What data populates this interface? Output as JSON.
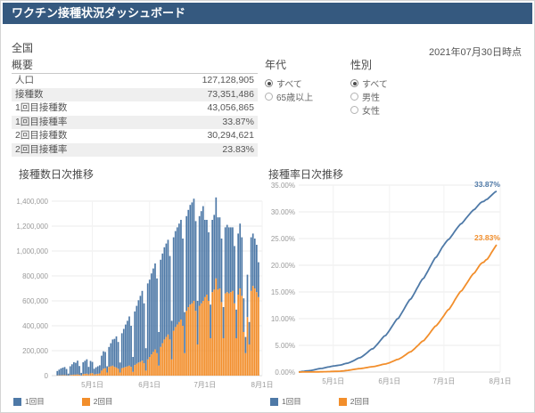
{
  "header": {
    "title": "ワクチン接種状況ダッシュボード"
  },
  "region": "全国",
  "as_of": "2021年07月30日時点",
  "summary": {
    "title": "概要",
    "rows": [
      {
        "label": "人口",
        "value": "127,128,905"
      },
      {
        "label": "接種数",
        "value": "73,351,486"
      },
      {
        "label": "1回目接種数",
        "value": "43,056,865"
      },
      {
        "label": "1回目接種率",
        "value": "33.87%"
      },
      {
        "label": "2回目接種数",
        "value": "30,294,621"
      },
      {
        "label": "2回目接種率",
        "value": "23.83%"
      }
    ]
  },
  "filters": {
    "age": {
      "label": "年代",
      "options": [
        {
          "label": "すべて",
          "selected": true
        },
        {
          "label": "65歳以上",
          "selected": false
        }
      ]
    },
    "gender": {
      "label": "性別",
      "options": [
        {
          "label": "すべて",
          "selected": true
        },
        {
          "label": "男性",
          "selected": false
        },
        {
          "label": "女性",
          "selected": false
        }
      ]
    }
  },
  "colors": {
    "header_bg": "#35597F",
    "dose1": "#4e79a7",
    "dose2": "#f28e2b",
    "grid": "#ebebeb",
    "zero_line": "#d8d8d8"
  },
  "chart_data": [
    {
      "type": "bar",
      "title": "接種数日次推移",
      "stacked": true,
      "start_date": "4月12日",
      "ylim": [
        0,
        1400000
      ],
      "y_ticks": [
        "0",
        "200,000",
        "400,000",
        "600,000",
        "800,000",
        "1,000,000",
        "1,200,000",
        "1,400,000"
      ],
      "x_ticks": [
        {
          "label": "5月1日",
          "day": 19
        },
        {
          "label": "6月1日",
          "day": 50
        },
        {
          "label": "7月1日",
          "day": 80
        },
        {
          "label": "8月1日",
          "day": 111
        }
      ],
      "series": [
        {
          "name": "1回目",
          "values": [
            35000,
            45000,
            55000,
            60000,
            65000,
            50000,
            15000,
            70000,
            85000,
            100000,
            95000,
            110000,
            70000,
            20000,
            95000,
            105000,
            115000,
            60000,
            100000,
            90000,
            45000,
            55000,
            60000,
            65000,
            120000,
            140000,
            130000,
            50000,
            160000,
            185000,
            210000,
            225000,
            250000,
            215000,
            80000,
            280000,
            310000,
            340000,
            365000,
            395000,
            330000,
            120000,
            430000,
            465000,
            500000,
            530000,
            560000,
            480000,
            180000,
            610000,
            620000,
            650000,
            670000,
            690000,
            600000,
            270000,
            700000,
            720000,
            740000,
            750000,
            760000,
            670000,
            310000,
            750000,
            770000,
            780000,
            790000,
            800000,
            700000,
            330000,
            760000,
            780000,
            800000,
            810000,
            820000,
            720000,
            350000,
            720000,
            740000,
            760000,
            620000,
            600000,
            550000,
            270000,
            580000,
            600000,
            650000,
            580000,
            570000,
            510000,
            250000,
            530000,
            540000,
            530000,
            520000,
            510000,
            460000,
            230000,
            490000,
            520000,
            470000,
            270000,
            130000,
            340000,
            180000,
            430000,
            420000,
            400000,
            380000,
            280000
          ]
        },
        {
          "name": "2回目",
          "values": [
            2000,
            3000,
            3000,
            4000,
            4000,
            3000,
            1000,
            5000,
            6000,
            8000,
            8000,
            10000,
            7000,
            2000,
            12000,
            14000,
            16000,
            10000,
            18000,
            20000,
            10000,
            12000,
            15000,
            18000,
            40000,
            55000,
            60000,
            25000,
            70000,
            75000,
            80000,
            70000,
            65000,
            55000,
            25000,
            60000,
            65000,
            70000,
            75000,
            80000,
            70000,
            30000,
            85000,
            95000,
            105000,
            110000,
            120000,
            100000,
            40000,
            130000,
            150000,
            170000,
            190000,
            210000,
            180000,
            80000,
            230000,
            260000,
            290000,
            310000,
            330000,
            290000,
            130000,
            360000,
            390000,
            410000,
            430000,
            450000,
            400000,
            180000,
            520000,
            550000,
            570000,
            580000,
            600000,
            520000,
            250000,
            560000,
            580000,
            600000,
            630000,
            650000,
            600000,
            300000,
            670000,
            690000,
            780000,
            690000,
            700000,
            590000,
            300000,
            660000,
            670000,
            660000,
            670000,
            680000,
            580000,
            300000,
            650000,
            700000,
            640000,
            350000,
            180000,
            470000,
            250000,
            680000,
            720000,
            700000,
            670000,
            630000
          ]
        }
      ]
    },
    {
      "type": "line",
      "title": "接種率日次推移",
      "start_date": "4月12日",
      "ylim": [
        0,
        35
      ],
      "y_ticks": [
        "0.00%",
        "5.00%",
        "10.00%",
        "15.00%",
        "20.00%",
        "25.00%",
        "30.00%",
        "35.00%"
      ],
      "x_ticks": [
        {
          "label": "5月1日",
          "day": 19
        },
        {
          "label": "6月1日",
          "day": 50
        },
        {
          "label": "7月1日",
          "day": 80
        },
        {
          "label": "8月1日",
          "day": 111
        }
      ],
      "series": [
        {
          "name": "1回目",
          "end_label": "33.87%",
          "values": [
            0.03,
            0.06,
            0.11,
            0.15,
            0.2,
            0.24,
            0.26,
            0.31,
            0.38,
            0.46,
            0.53,
            0.62,
            0.67,
            0.69,
            0.76,
            0.85,
            0.94,
            0.98,
            1.06,
            1.13,
            1.17,
            1.21,
            1.26,
            1.31,
            1.4,
            1.51,
            1.62,
            1.66,
            1.78,
            1.93,
            2.09,
            2.27,
            2.47,
            2.64,
            2.7,
            2.92,
            3.16,
            3.43,
            3.72,
            4.03,
            4.29,
            4.38,
            4.72,
            5.09,
            5.48,
            5.9,
            6.34,
            6.71,
            6.86,
            7.34,
            7.82,
            8.33,
            8.86,
            9.4,
            9.88,
            10.09,
            10.64,
            11.21,
            11.79,
            12.38,
            12.98,
            13.5,
            13.75,
            14.34,
            14.94,
            15.56,
            16.18,
            16.81,
            17.36,
            17.62,
            18.21,
            18.83,
            19.46,
            20.09,
            20.74,
            21.31,
            21.58,
            22.15,
            22.73,
            23.33,
            23.82,
            24.29,
            24.72,
            24.93,
            25.39,
            25.86,
            26.37,
            26.83,
            27.28,
            27.68,
            27.87,
            28.29,
            28.72,
            29.13,
            29.54,
            29.94,
            30.3,
            30.49,
            30.87,
            31.28,
            31.65,
            31.86,
            31.97,
            32.23,
            32.38,
            32.71,
            33.04,
            33.36,
            33.66,
            33.87
          ]
        },
        {
          "name": "2回目",
          "end_label": "23.83%",
          "values": [
            0.0,
            0.0,
            0.01,
            0.01,
            0.01,
            0.01,
            0.02,
            0.02,
            0.02,
            0.03,
            0.04,
            0.04,
            0.05,
            0.05,
            0.06,
            0.07,
            0.08,
            0.09,
            0.11,
            0.12,
            0.13,
            0.14,
            0.15,
            0.17,
            0.2,
            0.24,
            0.29,
            0.31,
            0.36,
            0.42,
            0.48,
            0.54,
            0.59,
            0.63,
            0.65,
            0.7,
            0.75,
            0.81,
            0.87,
            0.93,
            0.98,
            1.01,
            1.07,
            1.15,
            1.23,
            1.32,
            1.41,
            1.49,
            1.52,
            1.63,
            1.74,
            1.88,
            2.03,
            2.19,
            2.33,
            2.4,
            2.58,
            2.78,
            3.01,
            3.25,
            3.51,
            3.74,
            3.84,
            4.13,
            4.43,
            4.76,
            5.09,
            5.45,
            5.76,
            5.9,
            6.31,
            6.75,
            7.19,
            7.65,
            8.12,
            8.53,
            8.73,
            9.17,
            9.62,
            10.1,
            10.59,
            11.1,
            11.58,
            11.81,
            12.34,
            12.88,
            13.5,
            14.04,
            14.59,
            15.05,
            15.29,
            15.81,
            16.33,
            16.85,
            17.38,
            17.92,
            18.37,
            18.61,
            19.12,
            19.67,
            20.17,
            20.45,
            20.59,
            20.96,
            21.16,
            21.69,
            22.26,
            22.81,
            23.33,
            23.83
          ]
        }
      ]
    }
  ]
}
